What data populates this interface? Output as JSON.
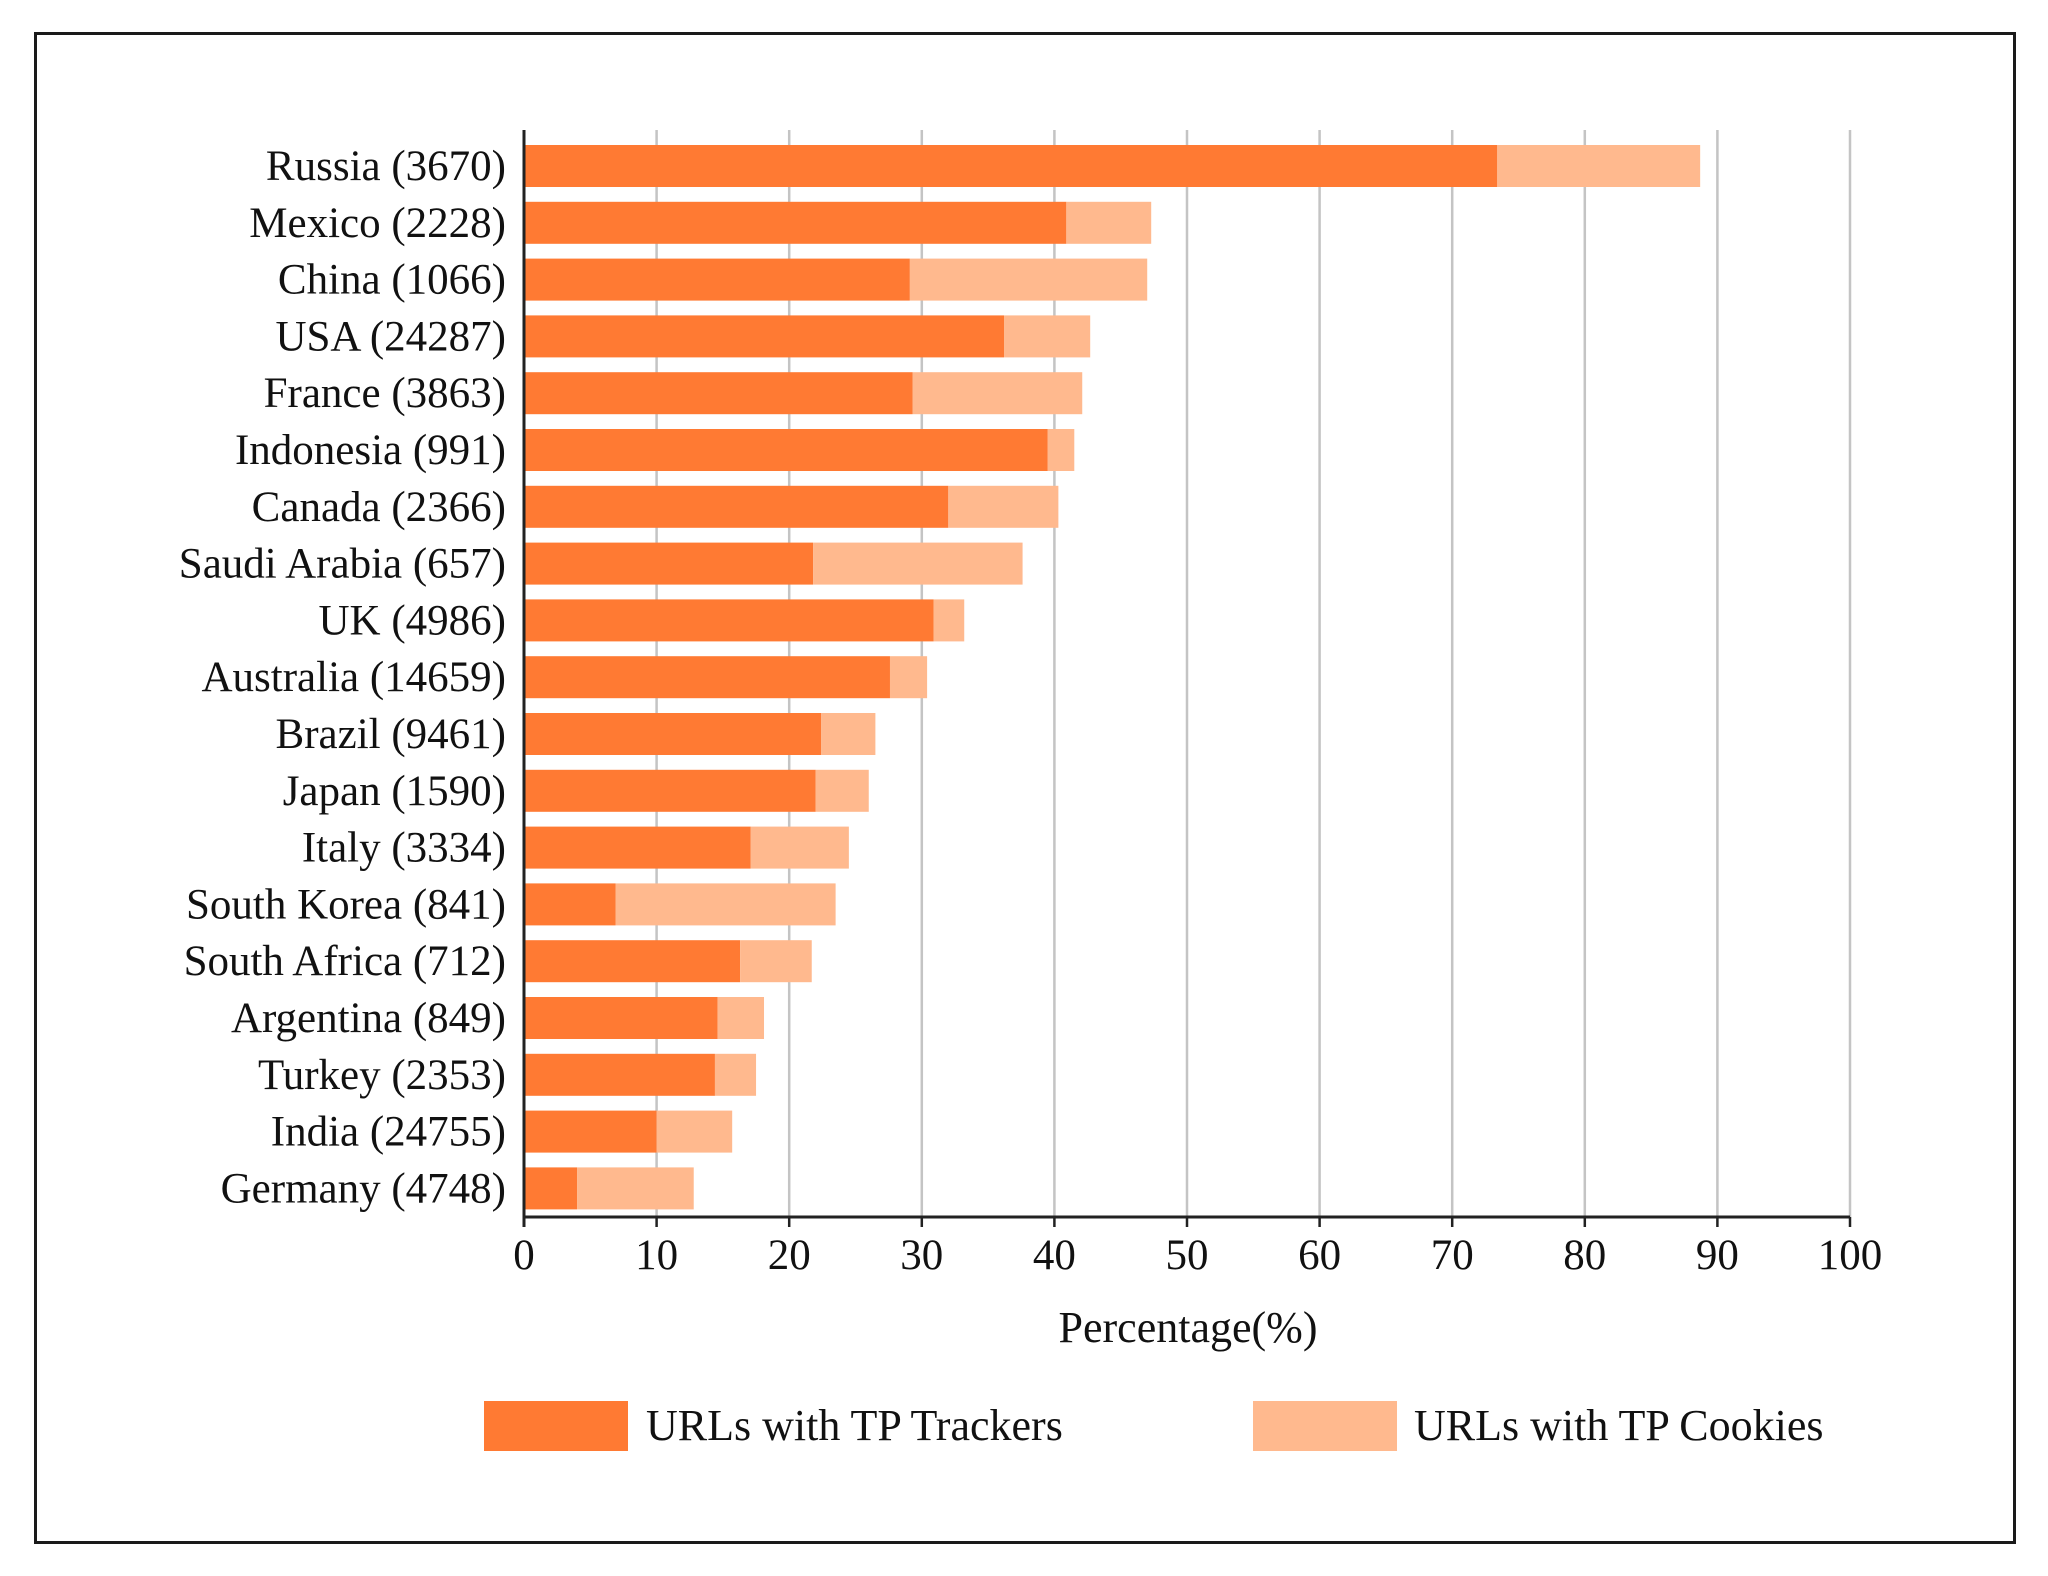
{
  "chart_data": {
    "type": "bar",
    "orientation": "horizontal",
    "stacked": true,
    "title": "",
    "xlabel": "Percentage(%)",
    "ylabel": "",
    "xlim": [
      0,
      100
    ],
    "xticks": [
      "0",
      "10",
      "20",
      "30",
      "40",
      "50",
      "60",
      "70",
      "80",
      "90",
      "100"
    ],
    "grid": "vertical",
    "legend_position": "bottom",
    "categories": [
      "Russia (3670)",
      "Mexico (2228)",
      "China (1066)",
      "USA (24287)",
      "France (3863)",
      "Indonesia (991)",
      "Canada (2366)",
      "Saudi Arabia (657)",
      "UK (4986)",
      "Australia (14659)",
      "Brazil (9461)",
      "Japan (1590)",
      "Italy (3334)",
      "South Korea (841)",
      "South Africa (712)",
      "Argentina (849)",
      "Turkey (2353)",
      "India (24755)",
      "Germany (4748)"
    ],
    "series": [
      {
        "name": "URLs with TP Trackers",
        "color": "#ff7a33",
        "values": [
          73.4,
          40.9,
          29.1,
          36.2,
          29.3,
          39.5,
          32.0,
          21.8,
          30.9,
          27.6,
          22.4,
          22.0,
          17.1,
          6.9,
          16.3,
          14.6,
          14.4,
          10.0,
          4.0
        ]
      },
      {
        "name": "URLs with TP Cookies",
        "color": "#ffb98e",
        "values": [
          15.3,
          6.4,
          17.9,
          6.5,
          12.8,
          2.0,
          8.3,
          15.8,
          2.3,
          2.8,
          4.1,
          4.0,
          7.4,
          16.6,
          5.4,
          3.5,
          3.1,
          5.7,
          8.8
        ]
      }
    ]
  }
}
